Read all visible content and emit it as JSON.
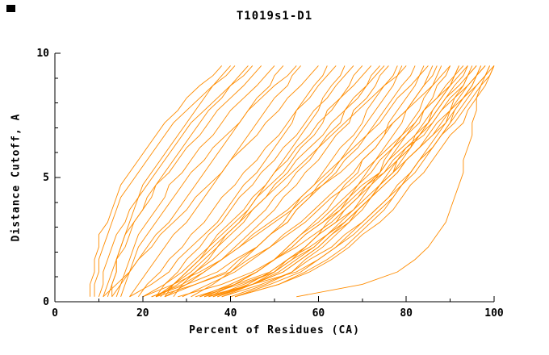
{
  "chart_data": {
    "type": "line",
    "title": "T1019s1-D1",
    "xlabel": "Percent of Residues (CA)",
    "ylabel": "Distance Cutoff, A",
    "xlim": [
      0,
      100
    ],
    "ylim": [
      0,
      10
    ],
    "x_ticks_major": [
      0,
      20,
      40,
      60,
      80,
      100
    ],
    "x_ticks_minor": [
      10,
      30,
      50,
      70,
      90
    ],
    "y_ticks_major": [
      0,
      5,
      10
    ],
    "y_ticks_minor": [
      1,
      2,
      3,
      4,
      6,
      7,
      8,
      9
    ],
    "grid": false,
    "legend": "none",
    "line_color": "#FF8C00",
    "axis_color": "#000000",
    "background": "#FFFFFF",
    "y_levels": [
      0.2,
      0.7,
      1.2,
      1.7,
      2.2,
      2.7,
      3.2,
      3.7,
      4.2,
      4.7,
      5.2,
      5.7,
      6.2,
      6.7,
      7.2,
      7.7,
      8.2,
      8.7,
      9.1,
      9.5
    ],
    "series": [
      {
        "x": [
          8,
          8,
          9,
          9,
          10,
          10,
          12,
          13,
          14,
          15,
          17,
          19,
          21,
          23,
          25,
          28,
          30,
          33,
          36,
          38
        ]
      },
      {
        "x": [
          9,
          9,
          10,
          10,
          11,
          12,
          13,
          14,
          15,
          17,
          19,
          21,
          23,
          25,
          27,
          30,
          33,
          36,
          39,
          41
        ]
      },
      {
        "x": [
          10,
          11,
          11,
          12,
          13,
          14,
          16,
          17,
          19,
          20,
          22,
          24,
          26,
          28,
          30,
          32,
          34,
          36,
          38,
          40
        ]
      },
      {
        "x": [
          12,
          13,
          14,
          14,
          16,
          17,
          18,
          20,
          21,
          23,
          25,
          27,
          29,
          31,
          33,
          35,
          38,
          40,
          42,
          44
        ]
      },
      {
        "x": [
          11,
          12,
          13,
          14,
          15,
          16,
          18,
          20,
          22,
          23,
          26,
          28,
          30,
          33,
          35,
          37,
          40,
          43,
          45,
          47
        ]
      },
      {
        "x": [
          13,
          13,
          14,
          14,
          15,
          16,
          17,
          18,
          19,
          21,
          23,
          25,
          27,
          29,
          31,
          34,
          37,
          40,
          43,
          45
        ]
      },
      {
        "x": [
          14,
          15,
          16,
          17,
          18,
          19,
          21,
          23,
          25,
          26,
          29,
          31,
          33,
          36,
          38,
          40,
          43,
          46,
          48,
          50
        ]
      },
      {
        "x": [
          15,
          16,
          17,
          18,
          19,
          21,
          23,
          25,
          27,
          29,
          31,
          34,
          36,
          39,
          42,
          44,
          47,
          50,
          53,
          55
        ]
      },
      {
        "x": [
          13,
          15,
          17,
          19,
          21,
          23,
          26,
          28,
          30,
          32,
          34,
          36,
          38,
          40,
          42,
          44,
          46,
          49,
          50,
          52
        ]
      },
      {
        "x": [
          17,
          19,
          21,
          23,
          25,
          27,
          30,
          32,
          34,
          36,
          38,
          40,
          42,
          44,
          46,
          48,
          50,
          53,
          54,
          56
        ]
      },
      {
        "x": [
          11,
          14,
          17,
          19,
          22,
          24,
          27,
          30,
          32,
          35,
          38,
          40,
          43,
          46,
          48,
          51,
          53,
          56,
          58,
          60
        ]
      },
      {
        "x": [
          17,
          22,
          26,
          28,
          31,
          34,
          37,
          39,
          41,
          43,
          46,
          48,
          50,
          52,
          54,
          55,
          57,
          59,
          61,
          62
        ]
      },
      {
        "x": [
          19,
          21,
          24,
          26,
          29,
          31,
          34,
          36,
          38,
          41,
          43,
          46,
          48,
          51,
          53,
          55,
          58,
          60,
          62,
          64
        ]
      },
      {
        "x": [
          23,
          27,
          31,
          34,
          37,
          39,
          42,
          44,
          46,
          48,
          50,
          52,
          54,
          56,
          58,
          60,
          61,
          63,
          65,
          66
        ]
      },
      {
        "x": [
          23,
          25,
          28,
          30,
          33,
          35,
          38,
          40,
          42,
          45,
          47,
          50,
          52,
          55,
          57,
          59,
          62,
          64,
          66,
          68
        ]
      },
      {
        "x": [
          20,
          25,
          29,
          32,
          35,
          38,
          41,
          44,
          46,
          49,
          52,
          54,
          56,
          59,
          61,
          62,
          65,
          67,
          68,
          70
        ]
      },
      {
        "x": [
          25,
          27,
          30,
          33,
          35,
          37,
          40,
          43,
          45,
          48,
          50,
          53,
          55,
          58,
          60,
          63,
          65,
          68,
          70,
          72
        ]
      },
      {
        "x": [
          23,
          28,
          32,
          36,
          39,
          42,
          45,
          48,
          50,
          53,
          55,
          58,
          60,
          62,
          65,
          66,
          69,
          71,
          72,
          74
        ]
      },
      {
        "x": [
          27,
          29,
          32,
          35,
          37,
          40,
          43,
          45,
          48,
          50,
          53,
          55,
          58,
          61,
          63,
          66,
          68,
          71,
          73,
          75
        ]
      },
      {
        "x": [
          25,
          30,
          34,
          38,
          41,
          44,
          47,
          50,
          52,
          55,
          57,
          60,
          62,
          64,
          67,
          68,
          71,
          73,
          74,
          76
        ]
      },
      {
        "x": [
          31,
          36,
          40,
          43,
          46,
          49,
          52,
          54,
          56,
          59,
          61,
          63,
          65,
          68,
          70,
          71,
          73,
          75,
          77,
          78
        ]
      },
      {
        "x": [
          24,
          27,
          30,
          33,
          36,
          39,
          42,
          45,
          48,
          51,
          54,
          57,
          60,
          63,
          66,
          69,
          72,
          75,
          78,
          80
        ]
      },
      {
        "x": [
          22,
          30,
          37,
          41,
          46,
          49,
          53,
          55,
          58,
          61,
          64,
          66,
          69,
          71,
          73,
          75,
          77,
          79,
          81,
          82
        ]
      },
      {
        "x": [
          33,
          40,
          46,
          50,
          53,
          56,
          59,
          62,
          64,
          66,
          69,
          70,
          73,
          75,
          76,
          78,
          80,
          82,
          83,
          84
        ]
      },
      {
        "x": [
          22,
          29,
          34,
          38,
          42,
          45,
          49,
          53,
          56,
          59,
          62,
          65,
          68,
          71,
          74,
          76,
          78,
          81,
          83,
          85
        ]
      },
      {
        "x": [
          38,
          45,
          50,
          54,
          57,
          60,
          62,
          65,
          67,
          69,
          71,
          73,
          75,
          77,
          79,
          80,
          82,
          84,
          85,
          86
        ]
      },
      {
        "x": [
          36,
          45,
          51,
          55,
          59,
          62,
          65,
          68,
          70,
          72,
          74,
          75,
          77,
          79,
          81,
          83,
          84,
          86,
          87,
          88
        ]
      },
      {
        "x": [
          36,
          43,
          50,
          53,
          57,
          60,
          64,
          66,
          69,
          71,
          74,
          76,
          78,
          80,
          82,
          84,
          86,
          87,
          89,
          90
        ]
      },
      {
        "x": [
          20,
          27,
          33,
          38,
          42,
          46,
          50,
          54,
          57,
          61,
          65,
          68,
          71,
          74,
          77,
          80,
          83,
          86,
          88,
          90
        ]
      },
      {
        "x": [
          40,
          48,
          54,
          57,
          61,
          64,
          67,
          69,
          72,
          74,
          76,
          78,
          81,
          82,
          84,
          86,
          88,
          90,
          91,
          92
        ]
      },
      {
        "x": [
          35,
          45,
          52,
          56,
          60,
          63,
          67,
          70,
          72,
          74,
          77,
          78,
          80,
          83,
          85,
          86,
          88,
          90,
          91,
          92
        ]
      },
      {
        "x": [
          37,
          45,
          52,
          56,
          60,
          63,
          66,
          69,
          72,
          74,
          77,
          79,
          81,
          83,
          85,
          87,
          89,
          91,
          93,
          94
        ]
      },
      {
        "x": [
          29,
          35,
          41,
          45,
          49,
          53,
          57,
          60,
          63,
          67,
          70,
          73,
          76,
          79,
          82,
          84,
          87,
          90,
          92,
          94
        ]
      },
      {
        "x": [
          34,
          45,
          55,
          60,
          64,
          68,
          71,
          74,
          77,
          79,
          81,
          83,
          85,
          87,
          89,
          90,
          91,
          93,
          94,
          95
        ]
      },
      {
        "x": [
          28,
          38,
          45,
          50,
          55,
          59,
          63,
          66,
          69,
          72,
          75,
          78,
          81,
          83,
          86,
          88,
          90,
          93,
          94,
          96
        ]
      },
      {
        "x": [
          34,
          41,
          46,
          50,
          54,
          57,
          61,
          64,
          67,
          70,
          74,
          76,
          79,
          82,
          85,
          87,
          89,
          92,
          94,
          96
        ]
      },
      {
        "x": [
          41,
          51,
          57,
          62,
          66,
          69,
          72,
          75,
          77,
          79,
          82,
          84,
          86,
          88,
          90,
          91,
          93,
          95,
          96,
          97
        ]
      },
      {
        "x": [
          32,
          41,
          49,
          53,
          58,
          62,
          66,
          69,
          72,
          75,
          78,
          80,
          83,
          86,
          88,
          90,
          93,
          95,
          96,
          98
        ]
      },
      {
        "x": [
          33,
          40,
          46,
          50,
          54,
          57,
          61,
          65,
          68,
          71,
          75,
          77,
          80,
          84,
          86,
          88,
          91,
          94,
          96,
          98
        ]
      },
      {
        "x": [
          41,
          49,
          56,
          60,
          64,
          67,
          70,
          73,
          76,
          79,
          81,
          83,
          86,
          88,
          90,
          92,
          94,
          96,
          98,
          99
        ]
      },
      {
        "x": [
          41,
          51,
          58,
          63,
          67,
          70,
          74,
          77,
          79,
          81,
          84,
          86,
          88,
          90,
          93,
          94,
          96,
          98,
          99,
          100
        ]
      },
      {
        "x": [
          38,
          47,
          54,
          58,
          63,
          66,
          70,
          73,
          76,
          78,
          81,
          83,
          86,
          88,
          91,
          93,
          95,
          97,
          99,
          100
        ]
      },
      {
        "x": [
          37,
          44,
          49,
          53,
          57,
          60,
          64,
          68,
          71,
          74,
          77,
          80,
          83,
          86,
          89,
          91,
          93,
          96,
          98,
          100
        ]
      },
      {
        "x": [
          55,
          70,
          78,
          82,
          85,
          87,
          89,
          90,
          91,
          92,
          93,
          93,
          94,
          95,
          95,
          96,
          96,
          97,
          98,
          99
        ]
      },
      {
        "x": [
          33,
          42,
          50,
          54,
          59,
          62,
          66,
          69,
          72,
          75,
          78,
          80,
          83,
          85,
          87,
          90,
          92,
          94,
          96,
          97
        ]
      },
      {
        "x": [
          35,
          41,
          46,
          50,
          53,
          56,
          60,
          63,
          66,
          69,
          72,
          74,
          77,
          80,
          83,
          84,
          87,
          89,
          91,
          93
        ]
      },
      {
        "x": [
          23,
          32,
          40,
          44,
          49,
          52,
          56,
          59,
          62,
          65,
          68,
          70,
          73,
          75,
          77,
          80,
          82,
          84,
          86,
          87
        ]
      },
      {
        "x": [
          25,
          32,
          39,
          42,
          46,
          49,
          53,
          55,
          58,
          60,
          63,
          65,
          67,
          69,
          71,
          73,
          75,
          77,
          78,
          79
        ]
      }
    ]
  }
}
